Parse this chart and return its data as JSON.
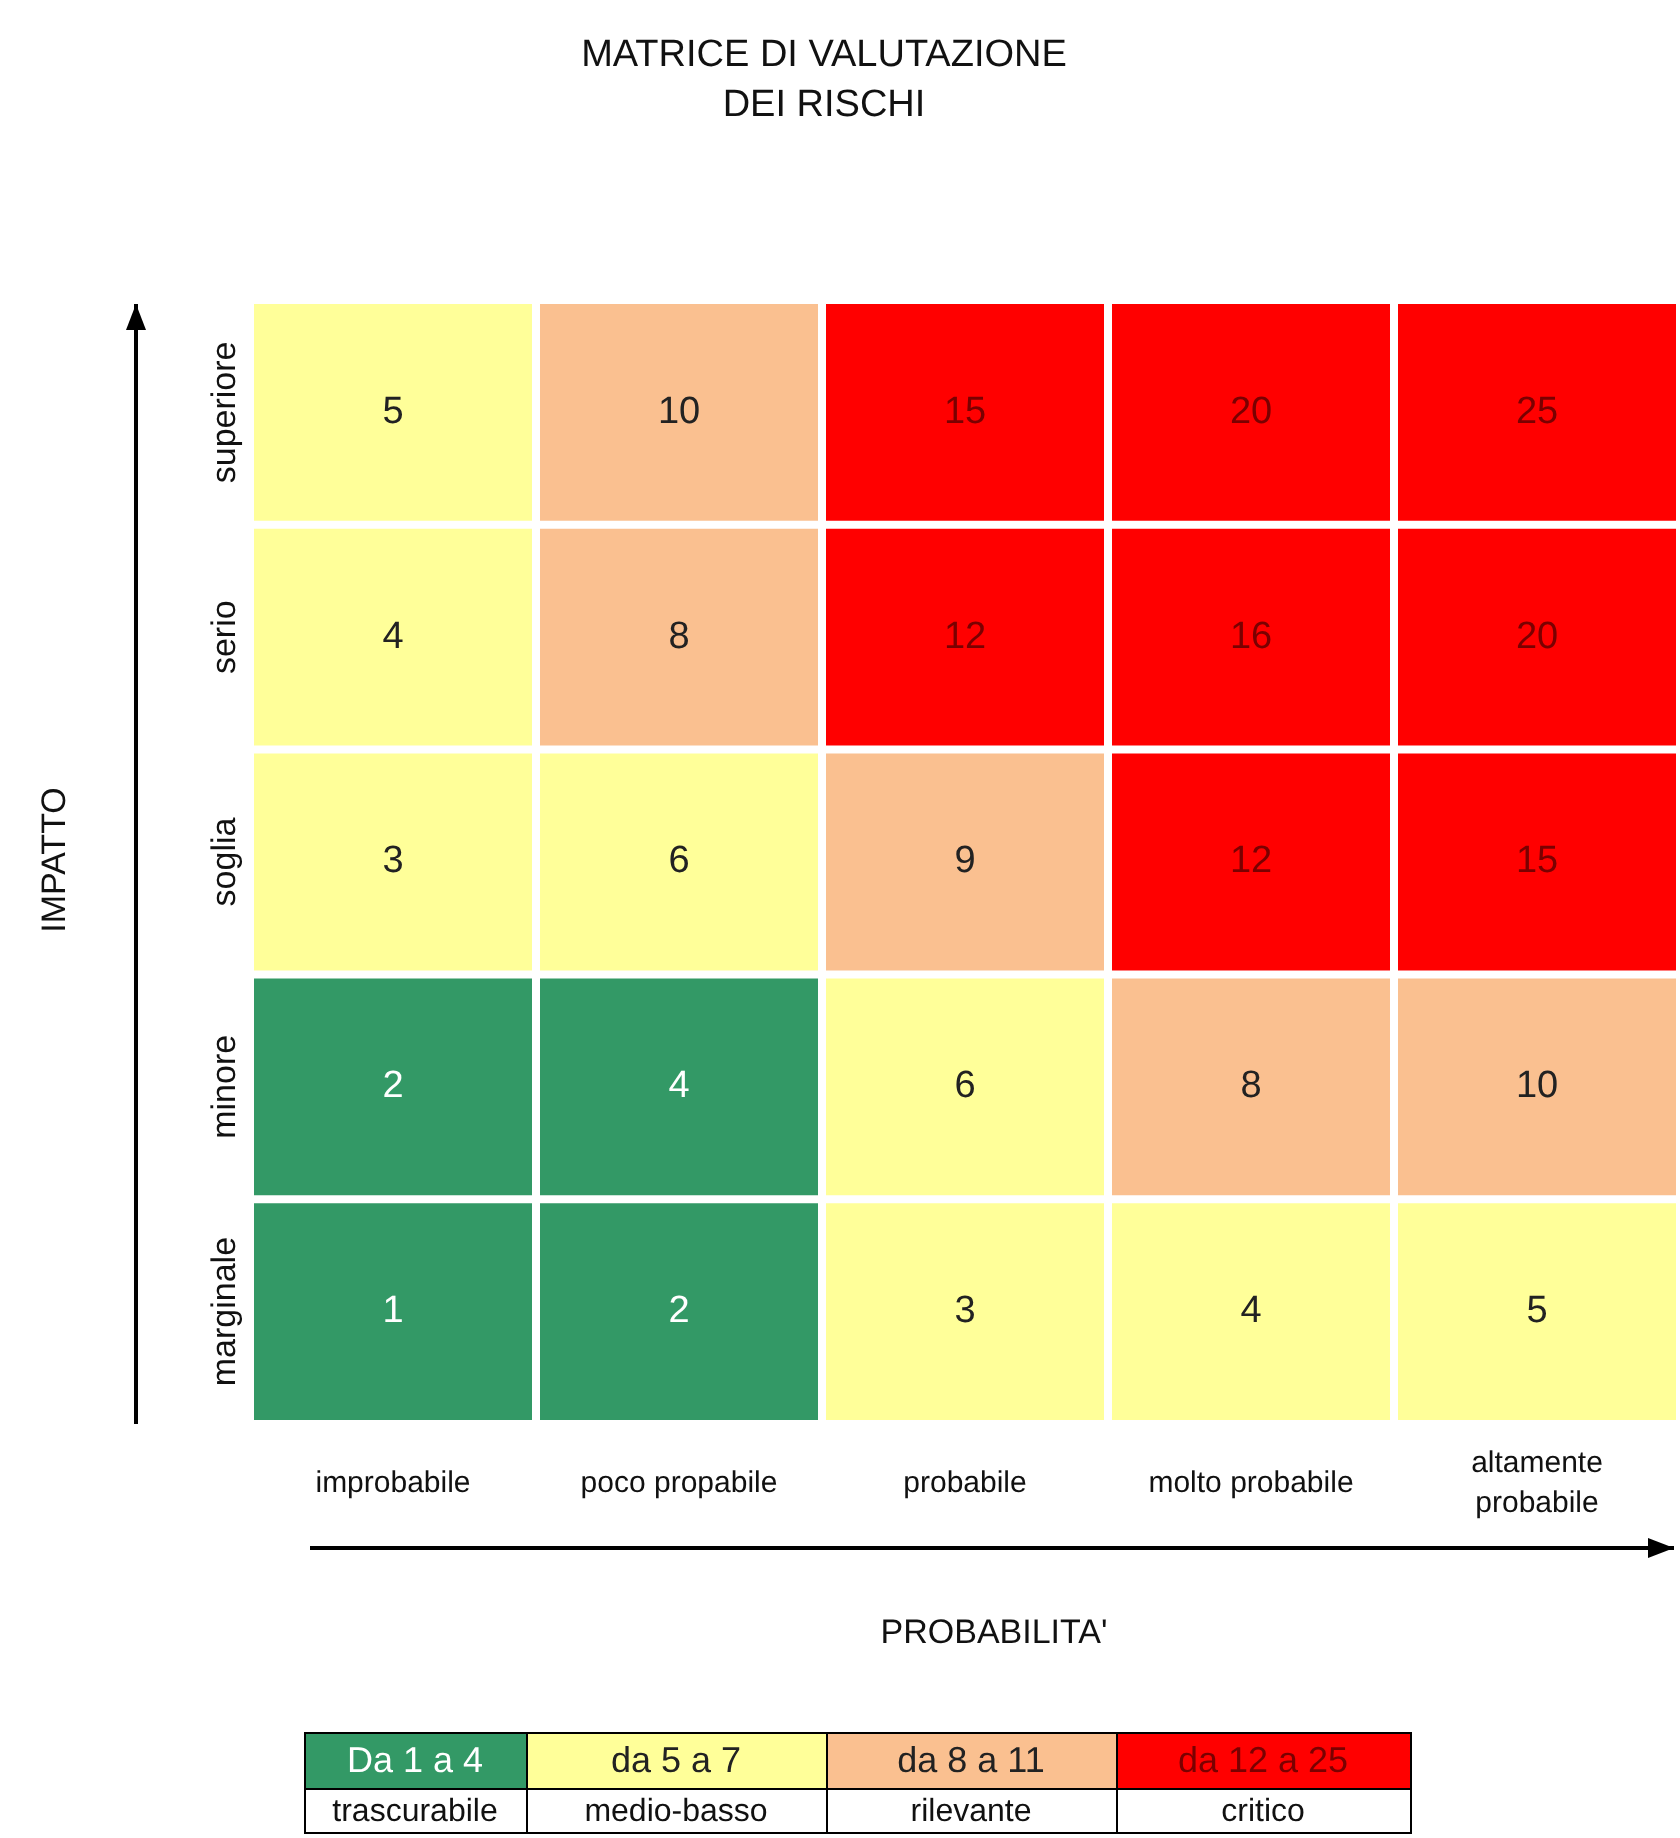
{
  "chart_data": {
    "type": "heatmap",
    "title": "MATRICE DI VALUTAZIONE DEI RISCHI",
    "xlabel": "PROBABILITA'",
    "ylabel": "IMPATTO",
    "categories": [
      "improbabile",
      "poco propabile",
      "probabile",
      "molto probabile",
      "altamente probabile"
    ],
    "y_categories": [
      "superiore",
      "serio",
      "soglia",
      "minore",
      "marginale"
    ],
    "cells": [
      [
        5,
        10,
        15,
        20,
        25
      ],
      [
        4,
        8,
        12,
        16,
        20
      ],
      [
        3,
        6,
        9,
        12,
        15
      ],
      [
        2,
        4,
        6,
        8,
        10
      ],
      [
        1,
        2,
        3,
        4,
        5
      ]
    ],
    "colors": [
      [
        "#ffff99",
        "#fac090",
        "#ff0000",
        "#ff0000",
        "#ff0000"
      ],
      [
        "#ffff99",
        "#fac090",
        "#ff0000",
        "#ff0000",
        "#ff0000"
      ],
      [
        "#ffff99",
        "#ffff99",
        "#fac090",
        "#ff0000",
        "#ff0000"
      ],
      [
        "#339966",
        "#339966",
        "#ffff99",
        "#fac090",
        "#fac090"
      ],
      [
        "#339966",
        "#339966",
        "#ffff99",
        "#ffff99",
        "#ffff99"
      ]
    ],
    "data_labels": true,
    "annotations": [
      "Da 1 a 4",
      "da 5 a 7",
      "da 8 a 11",
      "da 12 a 25",
      "trascurabile",
      "medio-basso",
      "rilevante",
      "critico"
    ]
  }
}
